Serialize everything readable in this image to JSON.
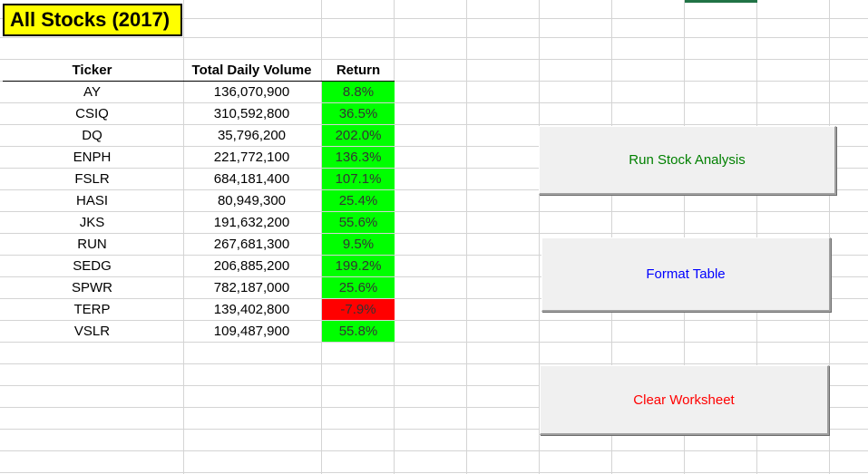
{
  "title": "All Stocks (2017)",
  "table": {
    "headers": {
      "ticker": "Ticker",
      "volume": "Total Daily Volume",
      "ret": "Return"
    },
    "rows": [
      {
        "ticker": "AY",
        "volume": "136,070,900",
        "ret": "8.8%",
        "positive": true
      },
      {
        "ticker": "CSIQ",
        "volume": "310,592,800",
        "ret": "36.5%",
        "positive": true
      },
      {
        "ticker": "DQ",
        "volume": "35,796,200",
        "ret": "202.0%",
        "positive": true
      },
      {
        "ticker": "ENPH",
        "volume": "221,772,100",
        "ret": "136.3%",
        "positive": true
      },
      {
        "ticker": "FSLR",
        "volume": "684,181,400",
        "ret": "107.1%",
        "positive": true
      },
      {
        "ticker": "HASI",
        "volume": "80,949,300",
        "ret": "25.4%",
        "positive": true
      },
      {
        "ticker": "JKS",
        "volume": "191,632,200",
        "ret": "55.6%",
        "positive": true
      },
      {
        "ticker": "RUN",
        "volume": "267,681,300",
        "ret": "9.5%",
        "positive": true
      },
      {
        "ticker": "SEDG",
        "volume": "206,885,200",
        "ret": "199.2%",
        "positive": true
      },
      {
        "ticker": "SPWR",
        "volume": "782,187,000",
        "ret": "25.6%",
        "positive": true
      },
      {
        "ticker": "TERP",
        "volume": "139,402,800",
        "ret": "-7.9%",
        "positive": false
      },
      {
        "ticker": "VSLR",
        "volume": "109,487,900",
        "ret": "55.8%",
        "positive": true
      }
    ]
  },
  "colors": {
    "positive": "#00ff00",
    "negative": "#ff0000",
    "title_bg": "#ffff00"
  },
  "buttons": {
    "run": {
      "label": "Run Stock Analysis",
      "color": "#008000"
    },
    "format": {
      "label": "Format Table",
      "color": "#0000ff"
    },
    "clear": {
      "label": "Clear Worksheet",
      "color": "#ff0000"
    }
  }
}
